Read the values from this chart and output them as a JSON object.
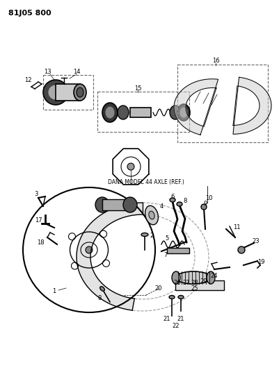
{
  "title": "81J05 800",
  "background_color": "#ffffff",
  "line_color": "#000000",
  "dashed_color": "#666666",
  "dana_label": "DANA MODEL 44 AXLE (REF.)",
  "fig_width": 4.01,
  "fig_height": 5.33,
  "dpi": 100
}
